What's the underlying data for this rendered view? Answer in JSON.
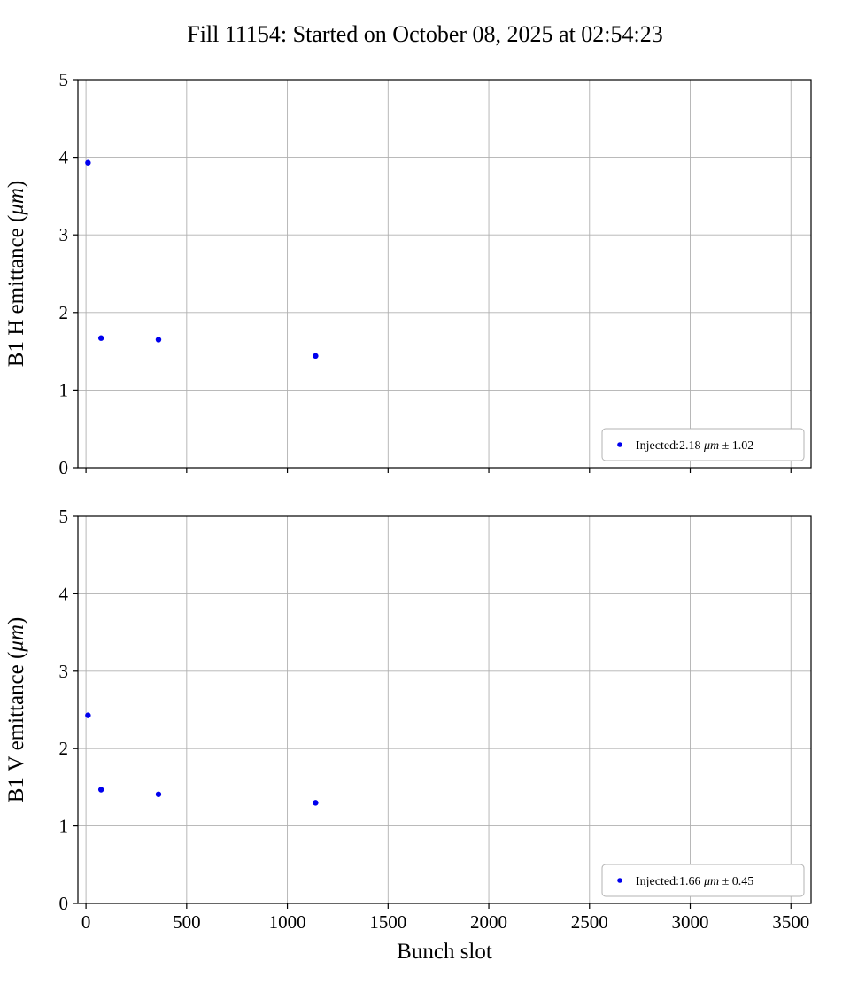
{
  "title": "Fill 11154: Started on October 08, 2025 at 02:54:23",
  "chart_data": [
    {
      "type": "scatter",
      "ylabel": "B1 H emittance (μm)",
      "xlabel": "",
      "x": [
        10,
        75,
        360,
        1140
      ],
      "y": [
        3.93,
        1.67,
        1.65,
        1.44
      ],
      "xlim": [
        -40,
        3600
      ],
      "ylim": [
        0,
        5
      ],
      "xticks": [
        0,
        500,
        1000,
        1500,
        2000,
        2500,
        3000,
        3500
      ],
      "yticks": [
        0,
        1,
        2,
        3,
        4,
        5
      ],
      "grid": true,
      "show_x_tick_labels": false,
      "marker_color": "#0000ee",
      "grid_color": "#b0b0b0",
      "legend": {
        "label": "Injected:2.18 μm ± 1.02",
        "position": "lower right"
      }
    },
    {
      "type": "scatter",
      "ylabel": "B1 V emittance (μm)",
      "xlabel": "Bunch slot",
      "x": [
        10,
        75,
        360,
        1140
      ],
      "y": [
        2.43,
        1.47,
        1.41,
        1.3
      ],
      "xlim": [
        -40,
        3600
      ],
      "ylim": [
        0,
        5
      ],
      "xticks": [
        0,
        500,
        1000,
        1500,
        2000,
        2500,
        3000,
        3500
      ],
      "yticks": [
        0,
        1,
        2,
        3,
        4,
        5
      ],
      "grid": true,
      "show_x_tick_labels": true,
      "marker_color": "#0000ee",
      "grid_color": "#b0b0b0",
      "legend": {
        "label": "Injected:1.66 μm ± 0.45",
        "position": "lower right"
      }
    }
  ]
}
